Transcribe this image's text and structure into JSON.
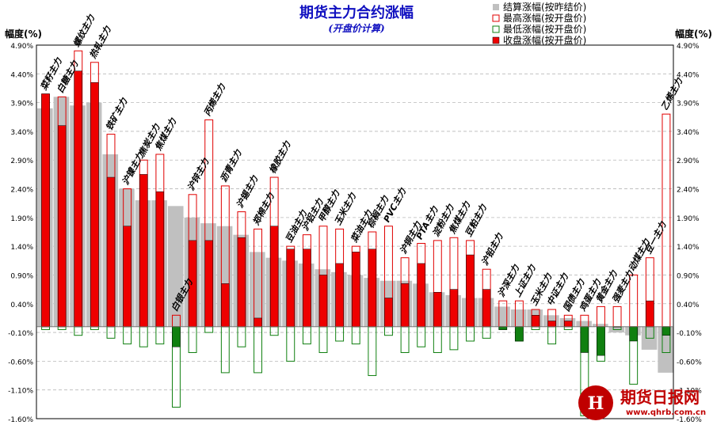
{
  "chart_data": {
    "type": "bar",
    "title": "期货主力合约涨幅",
    "subtitle": "(开盘价计算)",
    "ylabel_left": "幅度(%)",
    "ylabel_right": "幅度(%)",
    "ylim": [
      -1.6,
      4.9
    ],
    "yticks": [
      "4.90%",
      "4.40%",
      "3.90%",
      "3.40%",
      "2.90%",
      "2.40%",
      "1.90%",
      "1.40%",
      "0.90%",
      "0.40%",
      "-0.10%",
      "-0.60%",
      "-1.10%",
      "-1.60%"
    ],
    "ytick_values": [
      4.9,
      4.4,
      3.9,
      3.4,
      2.9,
      2.4,
      1.9,
      1.4,
      0.9,
      0.4,
      -0.1,
      -0.6,
      -1.1,
      -1.6
    ],
    "legend": [
      {
        "label": "结算涨幅(按昨结价)",
        "style": "gray"
      },
      {
        "label": "最高涨幅(按开盘价)",
        "style": "red-outline"
      },
      {
        "label": "最低涨幅(按开盘价)",
        "style": "green-outline"
      },
      {
        "label": "收盘涨幅(按开盘价)",
        "style": "red-fill"
      }
    ],
    "colors": {
      "settle": "#c0c0c0",
      "high": "#e00000",
      "low": "#108010",
      "close_up": "#ee0000",
      "close_down": "#108010"
    },
    "categories": [
      "菜籽主力",
      "白糖主力",
      "螺纹主力",
      "热轧主力",
      "铁矿主力",
      "沪镍主力",
      "焦炭主力",
      "焦煤主力",
      "白银主力",
      "沪锌主力",
      "丙烯主力",
      "沥青主力",
      "沪锡主力",
      "郑棉主力",
      "橡胶主力",
      "豆油主力",
      "沪铝主力",
      "甲醇主力",
      "玉米主力",
      "菜油主力",
      "棕榈主力",
      "PVC主力",
      "沪铜主力",
      "PTA主力",
      "淀粉主力",
      "焦煤主力",
      "豆粕主力",
      "沪铅主力",
      "沪深主力",
      "上证主力",
      "玉米主力",
      "中证主力",
      "国债主力",
      "鸡蛋主力",
      "黄金主力",
      "强麦主力",
      "动煤主力",
      "豆一主力",
      "乙烯主力"
    ],
    "series": [
      {
        "name": "结算涨幅(按昨结价)",
        "values": [
          3.8,
          4.0,
          3.85,
          3.9,
          3.0,
          2.4,
          2.2,
          2.2,
          2.1,
          1.9,
          1.8,
          1.75,
          1.6,
          1.3,
          1.2,
          1.15,
          1.1,
          1.0,
          0.95,
          0.9,
          0.85,
          0.8,
          0.8,
          0.75,
          0.6,
          0.55,
          0.5,
          0.5,
          0.35,
          0.3,
          0.3,
          0.2,
          0.15,
          0.1,
          0.05,
          -0.1,
          -0.15,
          -0.4,
          -0.8
        ]
      },
      {
        "name": "最高涨幅(按开盘价)",
        "values": [
          4.05,
          4.0,
          4.8,
          4.6,
          3.35,
          2.4,
          2.9,
          3.0,
          0.2,
          2.3,
          3.6,
          2.45,
          2.0,
          1.7,
          2.6,
          1.4,
          1.6,
          1.75,
          1.7,
          1.4,
          1.65,
          1.75,
          1.2,
          1.45,
          1.5,
          1.55,
          1.5,
          1.0,
          0.45,
          0.45,
          0.3,
          0.3,
          0.2,
          0.2,
          0.35,
          0.35,
          0.9,
          1.2,
          3.7
        ]
      },
      {
        "name": "最低涨幅(按开盘价)",
        "values": [
          -0.05,
          -0.05,
          -0.15,
          -0.05,
          -0.2,
          -0.3,
          -0.35,
          -0.3,
          -1.4,
          -0.45,
          -0.1,
          -0.8,
          -0.35,
          -0.8,
          -0.15,
          -0.6,
          -0.3,
          -0.45,
          -0.25,
          -0.3,
          -0.85,
          -0.15,
          -0.45,
          -0.35,
          -0.45,
          -0.4,
          -0.25,
          -0.2,
          -0.05,
          -0.25,
          -0.05,
          -0.3,
          -0.05,
          -1.55,
          -0.6,
          -0.05,
          -1.0,
          -0.2,
          -0.45
        ]
      },
      {
        "name": "收盘涨幅(按开盘价)",
        "values": [
          4.05,
          3.5,
          4.45,
          4.25,
          2.6,
          1.75,
          2.65,
          2.35,
          -0.35,
          1.5,
          1.5,
          0.75,
          1.55,
          0.15,
          1.75,
          1.35,
          1.35,
          0.9,
          1.1,
          1.3,
          1.35,
          0.5,
          0.75,
          1.1,
          0.6,
          0.65,
          1.25,
          0.65,
          -0.05,
          -0.25,
          0.2,
          0.1,
          0.1,
          -0.45,
          -0.5,
          0.0,
          -0.25,
          0.45,
          -0.15
        ]
      }
    ],
    "category_axis_labels_visible": false
  },
  "watermark": {
    "brand": "期货日报网",
    "url": "www.qhrb.com.cn"
  }
}
